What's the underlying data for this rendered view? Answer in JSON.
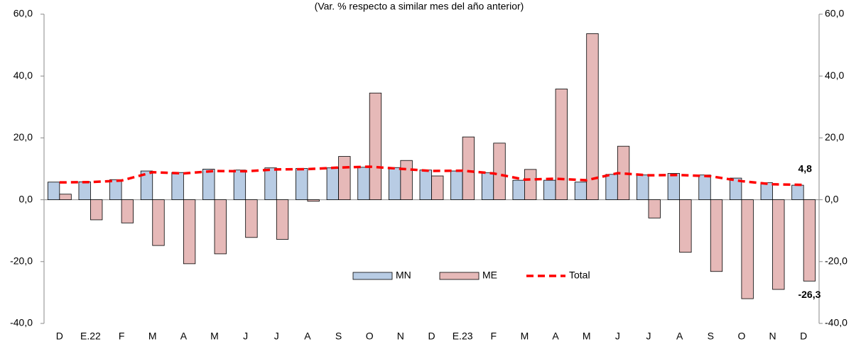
{
  "chart_data": {
    "type": "bar",
    "subtitle": "(Var. % respecto a similar mes del año anterior)",
    "categories": [
      "D",
      "E.22",
      "F",
      "M",
      "A",
      "M",
      "J",
      "J",
      "A",
      "S",
      "O",
      "N",
      "D",
      "E.23",
      "F",
      "M",
      "A",
      "M",
      "J",
      "J",
      "A",
      "S",
      "O",
      "N",
      "D"
    ],
    "series": [
      {
        "name": "MN",
        "type": "bar",
        "color": "#b8cce4",
        "values": [
          5.7,
          5.8,
          6.5,
          9.3,
          8.8,
          9.9,
          9.6,
          10.3,
          10.1,
          10.3,
          10.5,
          10.4,
          9.6,
          9.3,
          8.7,
          6.3,
          6.3,
          5.7,
          8.2,
          8.0,
          8.5,
          8.0,
          7.0,
          5.5,
          4.7
        ]
      },
      {
        "name": "ME",
        "type": "bar",
        "color": "#e6b9b8",
        "values": [
          1.8,
          -6.5,
          -7.5,
          -14.8,
          -20.7,
          -17.5,
          -12.2,
          -12.8,
          -0.5,
          14.0,
          34.5,
          12.7,
          7.7,
          20.3,
          18.3,
          9.8,
          35.8,
          53.7,
          17.3,
          -5.9,
          -17.0,
          -23.2,
          -32.0,
          -29.0,
          -26.3
        ],
        "value_labels": [
          null,
          null,
          null,
          null,
          null,
          null,
          null,
          null,
          null,
          null,
          null,
          null,
          null,
          null,
          null,
          null,
          null,
          null,
          null,
          null,
          null,
          null,
          null,
          null,
          "-26,3"
        ]
      },
      {
        "name": "Total",
        "type": "line",
        "color": "#ff0000",
        "values": [
          5.6,
          5.7,
          6.2,
          8.9,
          8.5,
          9.3,
          9.2,
          9.8,
          9.9,
          10.4,
          10.7,
          10.0,
          9.3,
          9.4,
          8.5,
          6.5,
          6.8,
          6.3,
          8.6,
          7.9,
          8.0,
          7.6,
          6.0,
          5.0,
          4.8
        ],
        "value_labels": [
          null,
          null,
          null,
          null,
          null,
          null,
          null,
          null,
          null,
          null,
          null,
          null,
          null,
          null,
          null,
          null,
          null,
          null,
          null,
          null,
          null,
          null,
          null,
          null,
          "4,8"
        ]
      }
    ],
    "ylim": [
      -40,
      60
    ],
    "yticks": [
      {
        "value": -40,
        "label": "-40,0"
      },
      {
        "value": -20,
        "label": "-20,0"
      },
      {
        "value": 0,
        "label": "0,0"
      },
      {
        "value": 20,
        "label": "20,0"
      },
      {
        "value": 40,
        "label": "40,0"
      },
      {
        "value": 60,
        "label": "60,0"
      }
    ],
    "y2lim": [
      -40,
      60
    ],
    "y2ticks": [
      {
        "value": -40,
        "label": "-40,0"
      },
      {
        "value": -20,
        "label": "-20,0"
      },
      {
        "value": 0,
        "label": "0,0"
      },
      {
        "value": 20,
        "label": "20,0"
      },
      {
        "value": 40,
        "label": "40,0"
      },
      {
        "value": 60,
        "label": "60,0"
      }
    ],
    "legend": "lower center",
    "grid": false
  }
}
